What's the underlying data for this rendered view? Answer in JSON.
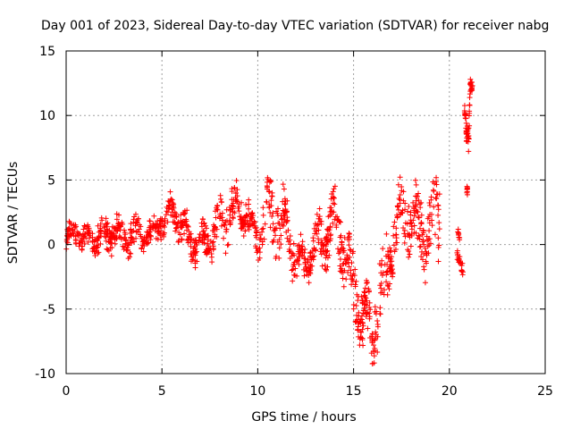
{
  "chart_data": {
    "type": "scatter",
    "title": "Day 001 of 2023, Sidereal Day-to-day VTEC variation (SDTVAR) for receiver nabg",
    "xlabel": "GPS time / hours",
    "ylabel": "SDTVAR / TECUs",
    "xlim": [
      0,
      25
    ],
    "ylim": [
      -10,
      15
    ],
    "xticks": [
      "0",
      "5",
      "10",
      "15",
      "20",
      "25"
    ],
    "yticks": [
      "15",
      "10",
      "5",
      "0",
      "-5",
      "-10"
    ],
    "grid": true,
    "marker": "+",
    "color": "#ff0000",
    "series": [
      {
        "name": "SDTVAR",
        "trend_hours": [
          0.0,
          0.5,
          1.0,
          1.5,
          2.0,
          2.5,
          3.0,
          3.5,
          4.0,
          4.5,
          5.0,
          5.5,
          6.0,
          6.5,
          7.0,
          7.5,
          8.0,
          8.5,
          9.0,
          9.5,
          10.0,
          10.5,
          11.0,
          11.5,
          12.0,
          12.5,
          13.0,
          13.5,
          14.0,
          14.5,
          15.0,
          15.5,
          16.0,
          16.5,
          17.0,
          17.5,
          18.0,
          18.5,
          19.0,
          19.5
        ],
        "trend_tecu": [
          0.5,
          1.0,
          0.3,
          0.8,
          0.5,
          1.2,
          0.2,
          1.0,
          0.6,
          0.8,
          1.8,
          2.5,
          1.5,
          0.5,
          -0.2,
          0.5,
          1.5,
          2.5,
          2.8,
          2.0,
          0.5,
          2.5,
          2.0,
          1.0,
          -1.0,
          -1.5,
          0.0,
          0.5,
          2.0,
          0.0,
          -3.5,
          -5.5,
          -6.5,
          -3.5,
          0.0,
          2.5,
          2.0,
          1.0,
          0.5,
          3.0
        ],
        "spread_tecu": [
          1.0,
          1.0,
          1.0,
          1.2,
          1.5,
          1.2,
          1.2,
          1.5,
          1.0,
          1.0,
          1.2,
          1.2,
          1.5,
          1.5,
          1.5,
          1.5,
          2.0,
          2.0,
          1.5,
          1.5,
          1.2,
          2.5,
          2.5,
          2.5,
          1.5,
          1.5,
          2.0,
          2.0,
          2.0,
          2.5,
          2.5,
          2.5,
          3.0,
          3.0,
          2.5,
          2.5,
          2.5,
          3.0,
          3.0,
          3.5
        ],
        "late_segments": [
          {
            "hours": [
              20.4,
              20.5,
              20.6,
              20.7
            ],
            "tecu": [
              -0.8,
              -1.0,
              -1.5,
              -2.0
            ]
          },
          {
            "hours": [
              20.45,
              20.55
            ],
            "tecu": [
              1.0,
              0.5
            ]
          },
          {
            "hours": [
              20.8,
              20.85,
              20.9,
              20.95,
              21.0,
              21.05,
              21.1,
              21.15,
              21.2
            ],
            "tecu": [
              10.5,
              10.0,
              8.0,
              9.0,
              7.5,
              11.0,
              12.5,
              12.0,
              12.5
            ]
          },
          {
            "hours": [
              20.9,
              20.95
            ],
            "tecu": [
              4.5,
              3.8
            ]
          }
        ]
      }
    ]
  }
}
